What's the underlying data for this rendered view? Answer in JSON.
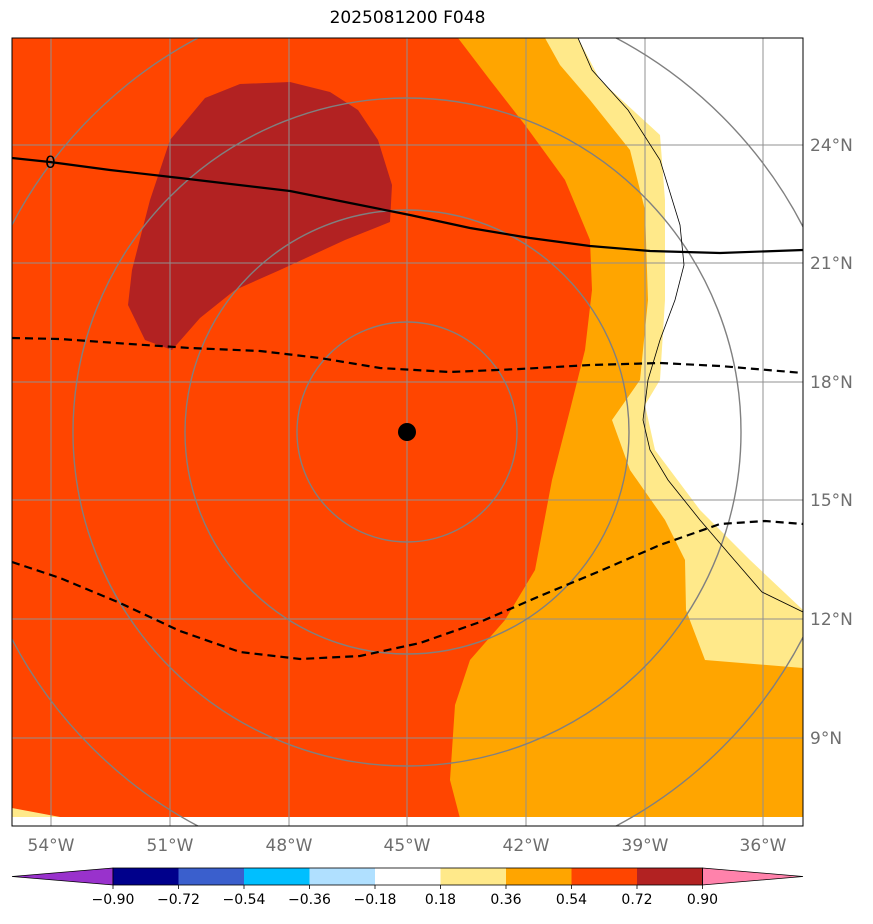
{
  "title": "2025081200 F048",
  "map": {
    "lon_range": [
      -55,
      -35
    ],
    "lat_range": [
      7,
      27
    ],
    "x_ticks": [
      "54°W",
      "51°W",
      "48°W",
      "45°W",
      "42°W",
      "39°W",
      "36°W"
    ],
    "y_ticks": [
      "24°N",
      "21°N",
      "18°N",
      "15°N",
      "12°N",
      "9°N"
    ],
    "contour_label": "0",
    "center_marker": {
      "lon": -45,
      "lat": 17
    }
  },
  "colorbar": {
    "labels": [
      "−0.90",
      "−0.72",
      "−0.54",
      "−0.36",
      "−0.18",
      "0.18",
      "0.36",
      "0.54",
      "0.72",
      "0.90"
    ],
    "colors": [
      "#9932cc",
      "#00008b",
      "#3a5fcd",
      "#00bfff",
      "#b0e0ff",
      "#ffffff",
      "#ffe98a",
      "#ffa500",
      "#ff4500",
      "#b22222",
      "#ff82ab"
    ]
  },
  "colors": {
    "fill_0.18_0.36": "#ffe98a",
    "fill_0.36_0.54": "#ffa500",
    "fill_0.54_0.72": "#ff4500",
    "fill_0.72_0.90": "#b22222",
    "grid": "#909090",
    "range_rings": "#808080"
  }
}
